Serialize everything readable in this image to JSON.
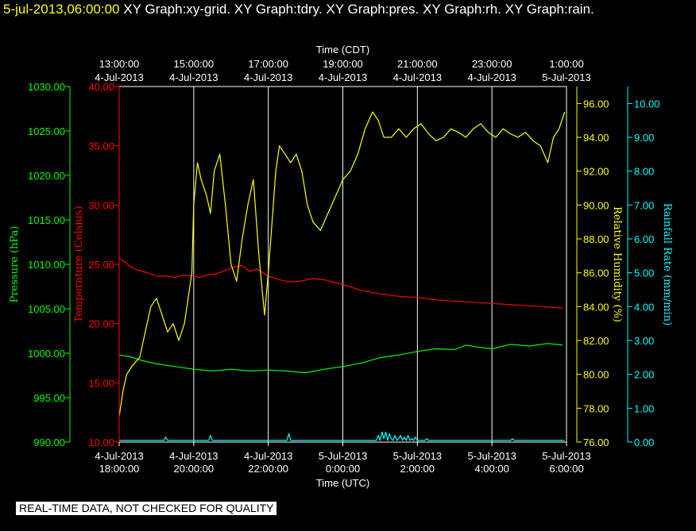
{
  "header": {
    "timestamp": "5-jul-2013,06:00:00",
    "graphs": [
      "XY Graph:xy-grid.",
      "XY Graph:tdry.",
      "XY Graph:pres.",
      "XY Graph:rh.",
      "XY Graph:rain."
    ]
  },
  "banner": "REAL-TIME DATA, NOT CHECKED FOR QUALITY",
  "colors": {
    "background": "#000000",
    "grid": "#ffffff",
    "pressure": "#00ff00",
    "temperature": "#ff0000",
    "humidity": "#ffff00",
    "rainfall": "#00ffff"
  },
  "chart_data": {
    "type": "line",
    "top_axis": {
      "title": "Time (CDT)",
      "ticks": [
        {
          "time": "13:00:00",
          "date": "4-Jul-2013"
        },
        {
          "time": "15:00:00",
          "date": "4-Jul-2013"
        },
        {
          "time": "17:00:00",
          "date": "4-Jul-2013"
        },
        {
          "time": "19:00:00",
          "date": "4-Jul-2013"
        },
        {
          "time": "21:00:00",
          "date": "4-Jul-2013"
        },
        {
          "time": "23:00:00",
          "date": "4-Jul-2013"
        },
        {
          "time": "1:00:00",
          "date": "5-Jul-2013"
        }
      ]
    },
    "bottom_axis": {
      "title": "Time (UTC)",
      "range": [
        "2013-07-04T18:00:00Z",
        "2013-07-05T06:00:00Z"
      ],
      "ticks": [
        {
          "date": "4-Jul-2013",
          "time": "18:00:00"
        },
        {
          "date": "4-Jul-2013",
          "time": "20:00:00"
        },
        {
          "date": "4-Jul-2013",
          "time": "22:00:00"
        },
        {
          "date": "5-Jul-2013",
          "time": "0:00:00"
        },
        {
          "date": "5-Jul-2013",
          "time": "2:00:00"
        },
        {
          "date": "5-Jul-2013",
          "time": "4:00:00"
        },
        {
          "date": "5-Jul-2013",
          "time": "6:00:00"
        }
      ]
    },
    "axes": {
      "pressure": {
        "title": "Pressure (hPa)",
        "range": [
          990,
          1030
        ],
        "ticks": [
          "990.00",
          "995.00",
          "1000.00",
          "1005.00",
          "1010.00",
          "1015.00",
          "1020.00",
          "1025.00",
          "1030.00"
        ]
      },
      "temperature": {
        "title": "Temperature (Celsius)",
        "range": [
          10,
          40
        ],
        "ticks": [
          "10.00",
          "15.00",
          "20.00",
          "25.00",
          "30.00",
          "35.00",
          "40.00"
        ]
      },
      "humidity": {
        "title": "Relative Humidity (%)",
        "range": [
          76,
          97
        ],
        "ticks": [
          "76.00",
          "78.00",
          "80.00",
          "82.00",
          "84.00",
          "86.00",
          "88.00",
          "90.00",
          "92.00",
          "94.00",
          "96.00"
        ]
      },
      "rainfall": {
        "title": "Rainfall Rate (mm/min)",
        "range": [
          0,
          10.5
        ],
        "ticks": [
          "0.00",
          "1.00",
          "2.00",
          "3.00",
          "4.00",
          "5.00",
          "6.00",
          "7.00",
          "8.00",
          "9.00",
          "10.00"
        ]
      }
    },
    "grid": true,
    "series": [
      {
        "name": "Temperature",
        "axis": "temperature",
        "x_hours_utc": [
          0,
          0.15,
          0.3,
          0.5,
          0.75,
          1.0,
          1.25,
          1.5,
          1.75,
          2.0,
          2.15,
          2.35,
          2.6,
          2.85,
          3.1,
          3.3,
          3.5,
          3.7,
          3.85,
          4.0,
          4.3,
          4.6,
          4.9,
          5.2,
          5.5,
          6.0,
          6.5,
          7.0,
          7.5,
          8.0,
          8.5,
          9.0,
          9.5,
          10.0,
          10.5,
          11.0,
          11.5,
          11.9
        ],
        "values": [
          25.5,
          25.2,
          24.8,
          24.5,
          24.3,
          24.0,
          24.0,
          23.9,
          24.1,
          24.0,
          23.9,
          24.1,
          24.2,
          24.5,
          24.8,
          24.9,
          24.4,
          24.6,
          24.3,
          24.0,
          23.7,
          23.5,
          23.6,
          23.8,
          23.7,
          23.3,
          22.8,
          22.5,
          22.3,
          22.2,
          22.0,
          21.9,
          21.8,
          21.7,
          21.6,
          21.5,
          21.4,
          21.3
        ]
      },
      {
        "name": "Pressure",
        "axis": "pressure",
        "x_hours_utc": [
          0,
          0.3,
          0.6,
          1.0,
          1.5,
          2.0,
          2.5,
          3.0,
          3.5,
          4.0,
          4.5,
          5.0,
          5.5,
          6.0,
          6.5,
          7.0,
          7.5,
          8.0,
          8.5,
          9.0,
          9.3,
          9.6,
          10.0,
          10.5,
          11.0,
          11.5,
          11.9
        ],
        "values": [
          999.8,
          999.6,
          999.2,
          998.8,
          998.5,
          998.2,
          998.0,
          998.2,
          998.0,
          998.1,
          998.0,
          997.8,
          998.2,
          998.5,
          998.9,
          999.5,
          999.8,
          1000.2,
          1000.5,
          1000.4,
          1000.9,
          1000.7,
          1000.5,
          1001.0,
          1000.8,
          1001.1,
          1000.9
        ]
      },
      {
        "name": "Relative Humidity",
        "axis": "humidity",
        "x_hours_utc": [
          0,
          0.1,
          0.2,
          0.35,
          0.55,
          0.7,
          0.85,
          1.0,
          1.15,
          1.3,
          1.45,
          1.6,
          1.75,
          1.85,
          1.95,
          2.0,
          2.1,
          2.2,
          2.35,
          2.45,
          2.55,
          2.7,
          2.85,
          3.0,
          3.15,
          3.3,
          3.45,
          3.6,
          3.75,
          3.9,
          4.0,
          4.1,
          4.2,
          4.3,
          4.45,
          4.6,
          4.75,
          4.9,
          5.05,
          5.2,
          5.4,
          5.6,
          5.8,
          6.0,
          6.2,
          6.4,
          6.6,
          6.8,
          6.95,
          7.1,
          7.3,
          7.5,
          7.7,
          7.9,
          8.1,
          8.3,
          8.5,
          8.7,
          8.9,
          9.1,
          9.3,
          9.5,
          9.7,
          9.9,
          10.1,
          10.3,
          10.5,
          10.7,
          10.9,
          11.1,
          11.3,
          11.5,
          11.65,
          11.8,
          11.95
        ],
        "values": [
          77.5,
          79.0,
          80.0,
          80.5,
          81.0,
          82.5,
          84.0,
          84.5,
          83.5,
          82.5,
          83.0,
          82.0,
          83.0,
          84.5,
          86.0,
          90.0,
          92.5,
          91.5,
          90.5,
          89.5,
          92.0,
          93.0,
          90.0,
          86.5,
          85.5,
          88.0,
          90.0,
          91.5,
          87.0,
          83.5,
          86.0,
          89.0,
          92.0,
          93.5,
          93.0,
          92.5,
          93.0,
          92.0,
          90.0,
          89.0,
          88.5,
          89.5,
          90.5,
          91.5,
          92.0,
          93.0,
          94.5,
          95.5,
          95.0,
          94.0,
          94.0,
          94.5,
          94.0,
          94.5,
          94.8,
          94.2,
          93.8,
          94.0,
          94.5,
          94.3,
          94.0,
          94.5,
          94.8,
          94.3,
          94.0,
          94.5,
          94.2,
          94.0,
          94.3,
          93.8,
          93.5,
          92.5,
          94.0,
          94.5,
          95.5
        ]
      },
      {
        "name": "Rainfall Rate",
        "axis": "rainfall",
        "x_hours_utc": [
          0,
          1.2,
          1.25,
          1.3,
          2.4,
          2.45,
          2.5,
          4.5,
          4.55,
          4.6,
          6.9,
          6.95,
          7.0,
          7.05,
          7.1,
          7.15,
          7.2,
          7.25,
          7.3,
          7.35,
          7.4,
          7.45,
          7.5,
          7.55,
          7.6,
          7.65,
          7.7,
          7.75,
          7.8,
          7.85,
          7.9,
          7.95,
          8.0,
          8.05,
          8.1,
          8.2,
          8.25,
          8.3,
          9.0,
          10.5,
          10.55,
          10.6,
          11.95
        ],
        "values": [
          0.05,
          0.05,
          0.15,
          0.05,
          0.05,
          0.2,
          0.05,
          0.05,
          0.25,
          0.05,
          0.05,
          0.2,
          0.05,
          0.3,
          0.1,
          0.3,
          0.05,
          0.25,
          0.1,
          0.05,
          0.2,
          0.05,
          0.1,
          0.2,
          0.05,
          0.15,
          0.05,
          0.2,
          0.05,
          0.1,
          0.05,
          0.15,
          0.05,
          0.05,
          0.05,
          0.05,
          0.1,
          0.05,
          0.05,
          0.05,
          0.1,
          0.05,
          0.05
        ]
      }
    ]
  }
}
